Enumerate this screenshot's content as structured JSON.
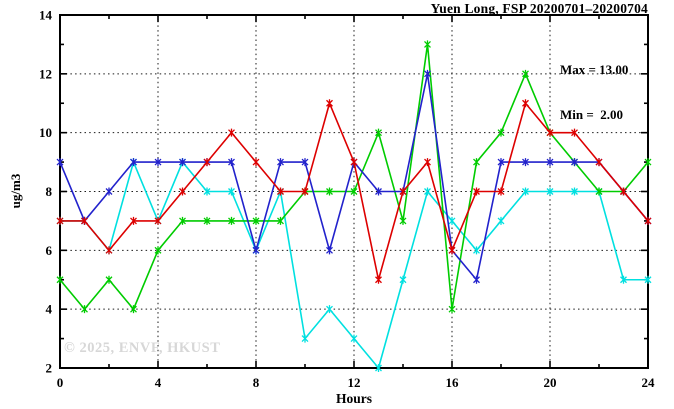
{
  "chart_data": {
    "type": "line",
    "title": "Yuen Long, FSP 20200701–20200704",
    "xlabel": "Hours",
    "ylabel": "ug/m3",
    "xlim": [
      0,
      24
    ],
    "ylim": [
      2,
      14
    ],
    "xticks_major": [
      0,
      4,
      8,
      12,
      16,
      20,
      24
    ],
    "xticks_minor": [
      2,
      6,
      10,
      14,
      18,
      22
    ],
    "yticks_major": [
      2,
      4,
      6,
      8,
      10,
      12,
      14
    ],
    "yticks_minor": [
      3,
      5,
      7,
      9,
      11,
      13
    ],
    "grid_x": [
      4,
      8,
      12,
      16,
      20
    ],
    "grid_y": [
      4,
      6,
      8,
      10,
      12
    ],
    "grid_style": "dotted",
    "legend_position": "none",
    "x": [
      0,
      1,
      2,
      3,
      4,
      5,
      6,
      7,
      8,
      9,
      10,
      11,
      12,
      13,
      14,
      15,
      16,
      17,
      18,
      19,
      20,
      21,
      22,
      23,
      24
    ],
    "series": [
      {
        "name": "cyan-line",
        "color": "#00e0e0",
        "values": [
          7,
          7,
          6,
          9,
          7,
          9,
          8,
          8,
          6,
          8,
          3,
          4,
          3,
          2,
          5,
          8,
          7,
          6,
          7,
          8,
          8,
          8,
          8,
          5,
          5
        ]
      },
      {
        "name": "green-line",
        "color": "#00cc00",
        "values": [
          5,
          4,
          5,
          4,
          6,
          7,
          7,
          7,
          7,
          7,
          8,
          8,
          8,
          10,
          7,
          13,
          4,
          9,
          10,
          12,
          10,
          9,
          8,
          8,
          9
        ]
      },
      {
        "name": "blue-line",
        "color": "#2222cc",
        "values": [
          9,
          7,
          8,
          9,
          9,
          9,
          9,
          9,
          6,
          9,
          9,
          6,
          9,
          8,
          8,
          12,
          6,
          5,
          9,
          9,
          9,
          9,
          9,
          8,
          7
        ]
      },
      {
        "name": "red-line",
        "color": "#dd0000",
        "values": [
          7,
          7,
          6,
          7,
          7,
          8,
          9,
          10,
          9,
          8,
          8,
          11,
          9,
          5,
          8,
          9,
          6,
          8,
          8,
          11,
          10,
          10,
          9,
          8,
          7
        ]
      }
    ],
    "annotation": {
      "max_label": "Max = 13.00",
      "min_label": "Min =  2.00"
    },
    "watermark": "© 2025, ENVF, HKUST",
    "axis_color": "#000000",
    "background_color": "#ffffff"
  }
}
